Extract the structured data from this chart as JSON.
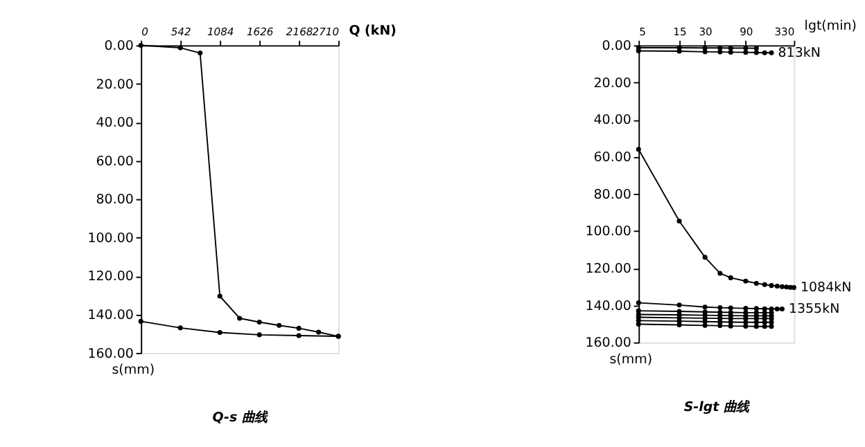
{
  "chart_data": [
    {
      "type": "line",
      "title": "Q-s 曲线",
      "xlabel": "Q (kN)",
      "ylabel": "s(mm)",
      "xlim": [
        0,
        2710
      ],
      "xticks": [
        0,
        542,
        1084,
        1626,
        2168,
        2710
      ],
      "ylim": [
        160,
        0
      ],
      "yticks": [
        {
          "value": 0,
          "label": "0.00"
        },
        {
          "value": 20,
          "label": "20.00"
        },
        {
          "value": 40,
          "label": "40.00"
        },
        {
          "value": 60,
          "label": "60.00"
        },
        {
          "value": 80,
          "label": "80.00"
        },
        {
          "value": 100,
          "label": "100.00"
        },
        {
          "value": 120,
          "label": "120.00"
        },
        {
          "value": 140,
          "label": "140.00"
        },
        {
          "value": 160,
          "label": "160.00"
        }
      ],
      "grid": false,
      "legend": false,
      "marker": "circle",
      "line_style": "solid",
      "series": [
        {
          "color": "#000000",
          "x": [
            0,
            542,
            813,
            1084,
            1355,
            1626,
            1897,
            2168,
            2439,
            2710
          ],
          "values": [
            0,
            1.3,
            4,
            130.5,
            142,
            144,
            145.7,
            147.2,
            149.2,
            151.4
          ]
        },
        {
          "color": "#000000",
          "x": [
            2710,
            2168,
            1626,
            1084,
            542,
            0
          ],
          "values": [
            151.4,
            151,
            150.6,
            149.4,
            147,
            143.6
          ]
        }
      ]
    },
    {
      "type": "line",
      "title": "S-lgt 曲线",
      "xlabel": "lgt(min)",
      "ylabel": "s(mm)",
      "log": "x",
      "xlim": [
        5,
        330
      ],
      "xticks": [
        5,
        15,
        30,
        90,
        330
      ],
      "ylim": [
        160,
        0
      ],
      "yticks": [
        {
          "value": 0,
          "label": "0.00"
        },
        {
          "value": 20,
          "label": "20.00"
        },
        {
          "value": 40,
          "label": "40.00"
        },
        {
          "value": 60,
          "label": "60.00"
        },
        {
          "value": 80,
          "label": "80.00"
        },
        {
          "value": 100,
          "label": "100.00"
        },
        {
          "value": 120,
          "label": "120.00"
        },
        {
          "value": 140,
          "label": "140.00"
        },
        {
          "value": 160,
          "label": "160.00"
        }
      ],
      "grid": false,
      "legend": false,
      "marker": "circle",
      "line_style": "solid",
      "series": [
        {
          "color": "#000000",
          "x": [
            5,
            15,
            30,
            45,
            60,
            90,
            120
          ],
          "values": [
            1.3,
            1.3,
            1.4,
            1.4,
            1.5,
            1.5,
            1.6
          ]
        },
        {
          "name": "813kN",
          "color": "#000000",
          "x": [
            5,
            15,
            30,
            45,
            60,
            90,
            120,
            150,
            180
          ],
          "values": [
            3,
            3.2,
            3.5,
            3.6,
            3.7,
            3.8,
            3.9,
            4,
            4
          ]
        },
        {
          "name": "1084kN",
          "color": "#000000",
          "x": [
            5,
            15,
            30,
            45,
            60,
            90,
            120,
            150,
            180,
            210,
            240,
            270,
            300,
            330
          ],
          "values": [
            56,
            94.7,
            114.2,
            122.8,
            125.2,
            127,
            128.2,
            128.9,
            129.4,
            129.7,
            130,
            130.2,
            130.4,
            130.5
          ]
        },
        {
          "name": "1355kN",
          "color": "#000000",
          "x": [
            5,
            15,
            30,
            45,
            60,
            90,
            120,
            150,
            180,
            210,
            240
          ],
          "values": [
            138.7,
            139.9,
            141,
            141.3,
            141.5,
            141.7,
            141.8,
            141.9,
            142,
            142,
            142
          ]
        },
        {
          "color": "#000000",
          "x": [
            5,
            15,
            30,
            45,
            60,
            90,
            120,
            150,
            180
          ],
          "values": [
            143,
            143.3,
            143.6,
            143.8,
            143.9,
            144,
            144,
            144,
            144
          ]
        },
        {
          "color": "#000000",
          "x": [
            5,
            15,
            30,
            45,
            60,
            90,
            120,
            150,
            180
          ],
          "values": [
            145,
            145.2,
            145.4,
            145.5,
            145.6,
            145.7,
            145.7,
            145.7,
            145.7
          ]
        },
        {
          "color": "#000000",
          "x": [
            5,
            15,
            30,
            45,
            60,
            90,
            120,
            150,
            180
          ],
          "values": [
            146.5,
            146.8,
            147,
            147.1,
            147.2,
            147.2,
            147.2,
            147.2,
            147.2
          ]
        },
        {
          "color": "#000000",
          "x": [
            5,
            15,
            30,
            45,
            60,
            90,
            120,
            150,
            180
          ],
          "values": [
            148.3,
            148.6,
            148.8,
            149,
            149.1,
            149.2,
            149.2,
            149.2,
            149.2
          ]
        },
        {
          "color": "#000000",
          "x": [
            5,
            15,
            30,
            45,
            60,
            90,
            120,
            150,
            180
          ],
          "values": [
            150.2,
            150.6,
            150.9,
            151,
            151.2,
            151.3,
            151.4,
            151.4,
            151.4
          ]
        }
      ]
    }
  ]
}
